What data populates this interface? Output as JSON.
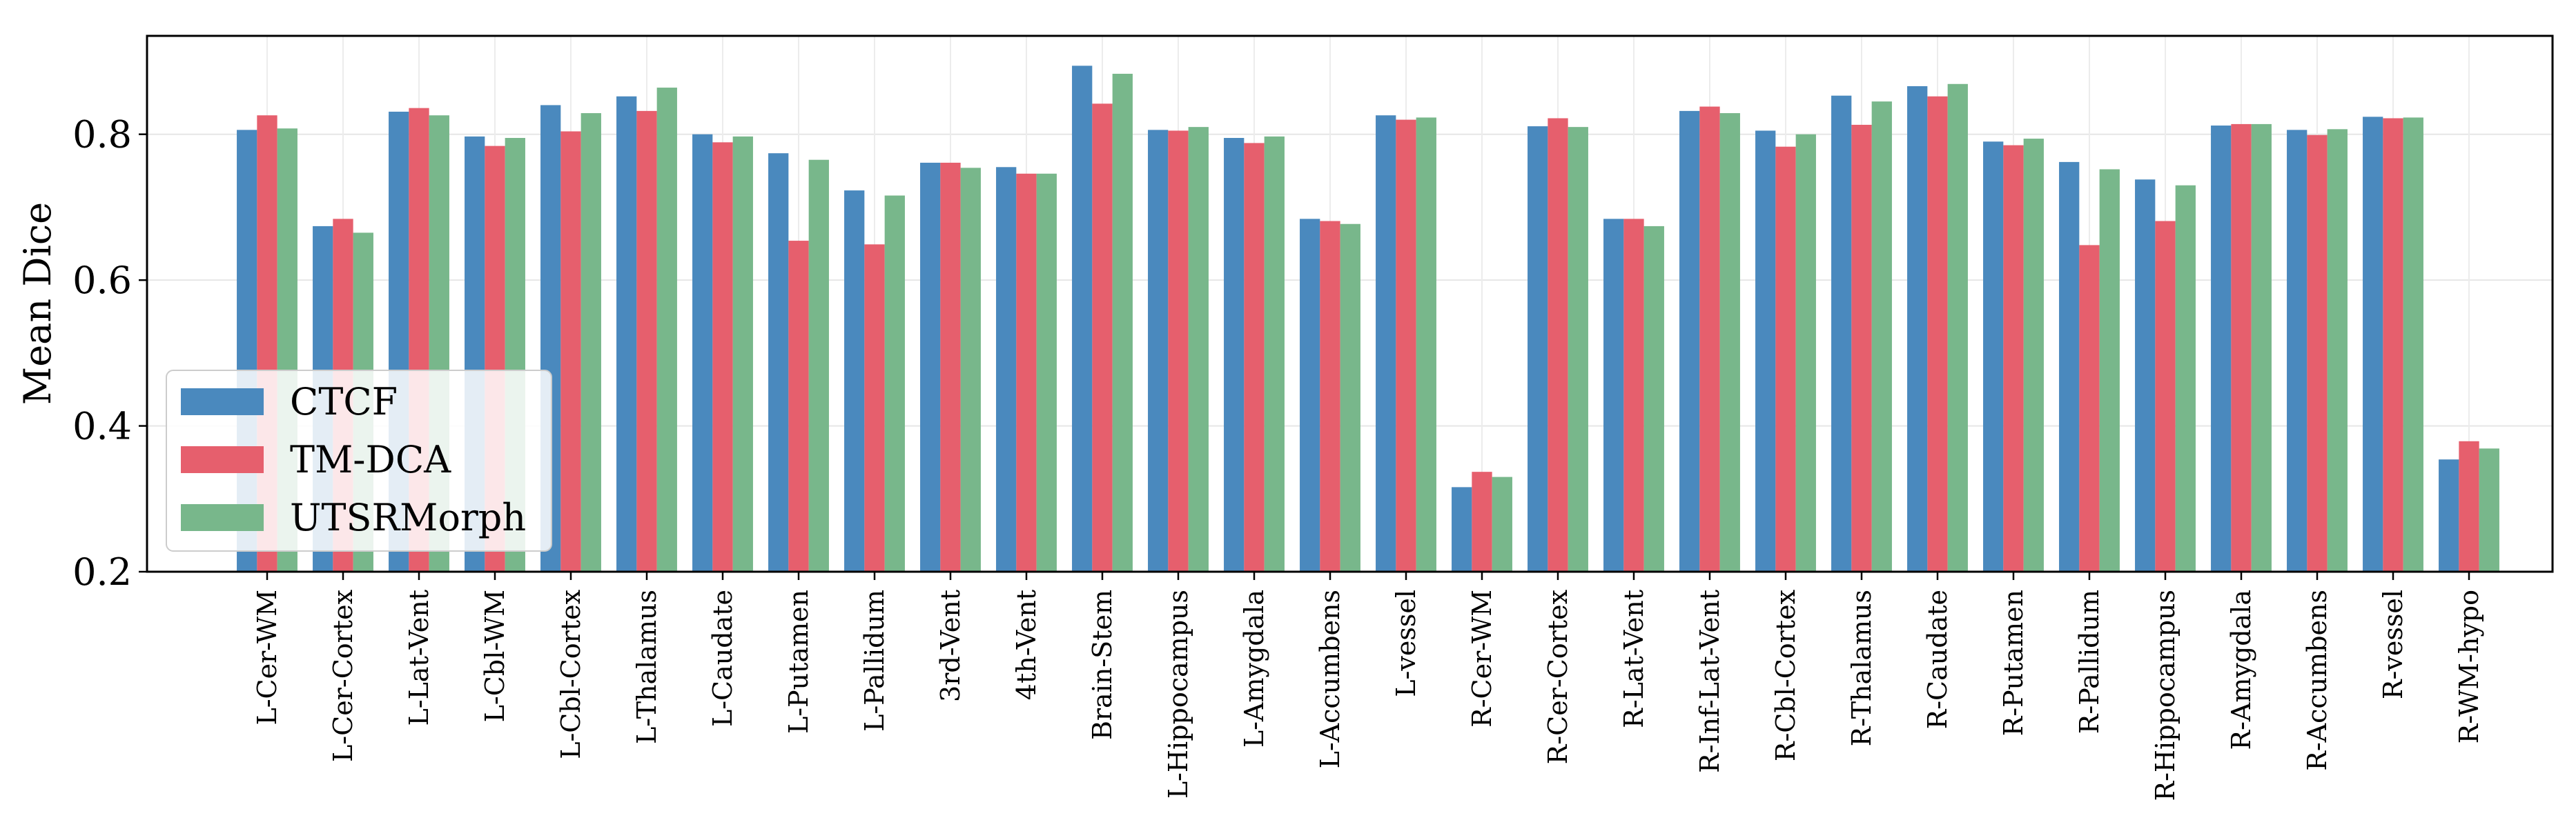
{
  "chart_data": {
    "type": "bar",
    "title": "",
    "xlabel": "",
    "ylabel": "Mean Dice",
    "ylim": [
      0.2,
      0.935
    ],
    "yticks": [
      "0.2",
      "0.4",
      "0.6",
      "0.8"
    ],
    "grid": true,
    "legend_position": "lower-left",
    "categories": [
      "L-Cer-WM",
      "L-Cer-Cortex",
      "L-Lat-Vent",
      "L-Cbl-WM",
      "L-Cbl-Cortex",
      "L-Thalamus",
      "L-Caudate",
      "L-Putamen",
      "L-Pallidum",
      "3rd-Vent",
      "4th-Vent",
      "Brain-Stem",
      "L-Hippocampus",
      "L-Amygdala",
      "L-Accumbens",
      "L-vessel",
      "R-Cer-WM",
      "R-Cer-Cortex",
      "R-Lat-Vent",
      "R-Inf-Lat-Vent",
      "R-Cbl-Cortex",
      "R-Thalamus",
      "R-Caudate",
      "R-Putamen",
      "R-Pallidum",
      "R-Hippocampus",
      "R-Amygdala",
      "R-Accumbens",
      "R-vessel",
      "R-WM-hypo"
    ],
    "series": [
      {
        "name": "CTCF",
        "color": "#4a89be",
        "values": [
          0.806,
          0.674,
          0.831,
          0.797,
          0.84,
          0.852,
          0.8,
          0.774,
          0.723,
          0.761,
          0.755,
          0.894,
          0.806,
          0.795,
          0.684,
          0.826,
          0.316,
          0.811,
          0.684,
          0.832,
          0.805,
          0.853,
          0.866,
          0.79,
          0.762,
          0.738,
          0.812,
          0.806,
          0.824,
          0.354
        ]
      },
      {
        "name": "TM-DCA",
        "color": "#e65f6d",
        "values": [
          0.826,
          0.684,
          0.836,
          0.784,
          0.804,
          0.832,
          0.789,
          0.654,
          0.649,
          0.761,
          0.746,
          0.842,
          0.805,
          0.788,
          0.681,
          0.82,
          0.337,
          0.822,
          0.684,
          0.838,
          0.783,
          0.813,
          0.852,
          0.785,
          0.648,
          0.681,
          0.814,
          0.799,
          0.822,
          0.379
        ]
      },
      {
        "name": "UTSRMorph",
        "color": "#78b78b",
        "values": [
          0.808,
          0.665,
          0.826,
          0.795,
          0.829,
          0.864,
          0.797,
          0.765,
          0.716,
          0.754,
          0.746,
          0.883,
          0.81,
          0.797,
          0.677,
          0.823,
          0.33,
          0.81,
          0.674,
          0.829,
          0.8,
          0.845,
          0.869,
          0.794,
          0.752,
          0.73,
          0.814,
          0.807,
          0.823,
          0.369
        ]
      }
    ]
  }
}
